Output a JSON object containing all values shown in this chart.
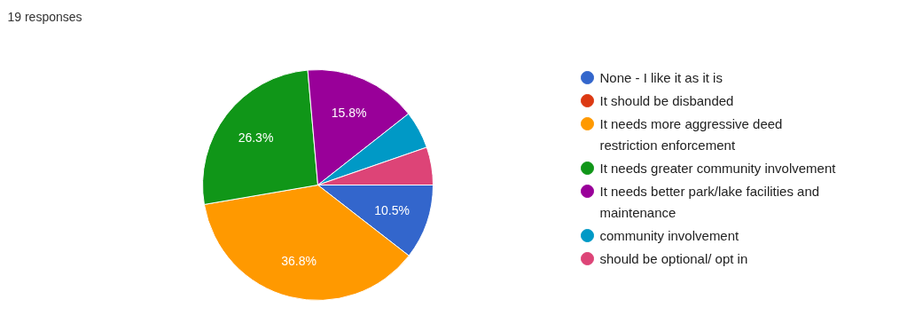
{
  "chart_data": {
    "type": "pie",
    "title": "19 responses",
    "categories": [
      "None - I like it as it is",
      "It should be disbanded",
      "It needs more aggressive deed restriction enforcement",
      "It needs greater community involvement",
      "It needs better park/lake facilities and maintenance",
      "community involvement",
      "should be optional/ opt in"
    ],
    "values": [
      10.5,
      0,
      36.8,
      26.3,
      15.8,
      5.3,
      5.3
    ],
    "value_labels": [
      "10.5%",
      null,
      "36.8%",
      "26.3%",
      "15.8%",
      null,
      null
    ],
    "colors": [
      "#3366cc",
      "#dc3912",
      "#ff9900",
      "#109618",
      "#990099",
      "#0099c6",
      "#dd4477"
    ],
    "legend": "right"
  }
}
